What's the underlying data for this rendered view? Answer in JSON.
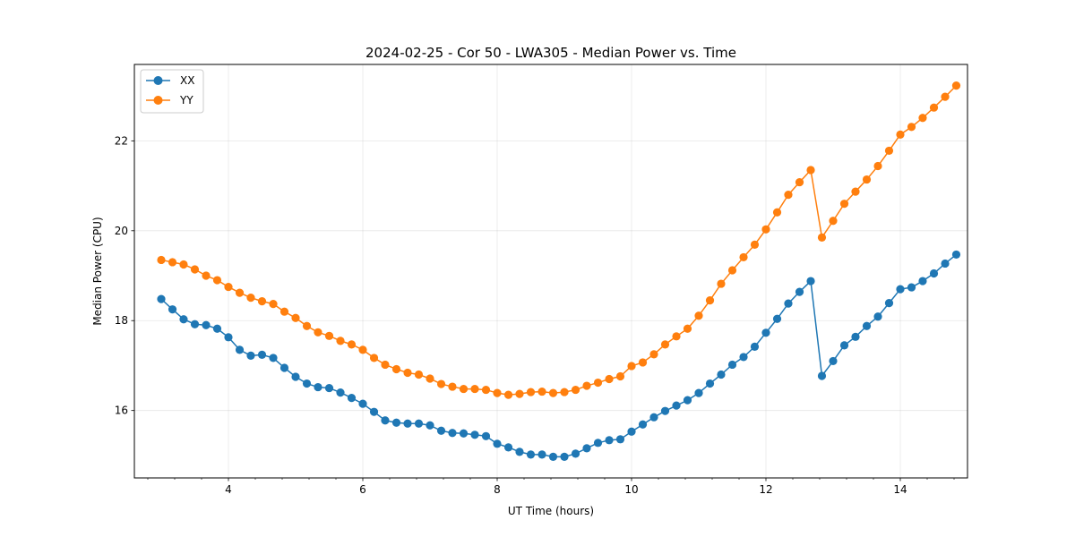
{
  "chart_data": {
    "type": "line",
    "title": "2024-02-25 - Cor 50 - LWA305 - Median Power vs. Time",
    "xlabel": "UT Time (hours)",
    "ylabel": "Median Power (CPU)",
    "xlim": [
      2.6,
      15.0
    ],
    "ylim": [
      14.5,
      23.7
    ],
    "x_ticks": [
      4,
      6,
      8,
      10,
      12,
      14
    ],
    "y_ticks": [
      16,
      18,
      20,
      22
    ],
    "x_minor_step": 0.4,
    "grid": true,
    "legend_position": "top-left",
    "x": [
      3.0,
      3.167,
      3.333,
      3.5,
      3.667,
      3.833,
      4.0,
      4.167,
      4.333,
      4.5,
      4.667,
      4.833,
      5.0,
      5.167,
      5.333,
      5.5,
      5.667,
      5.833,
      6.0,
      6.167,
      6.333,
      6.5,
      6.667,
      6.833,
      7.0,
      7.167,
      7.333,
      7.5,
      7.667,
      7.833,
      8.0,
      8.167,
      8.333,
      8.5,
      8.667,
      8.833,
      9.0,
      9.167,
      9.333,
      9.5,
      9.667,
      9.833,
      10.0,
      10.167,
      10.333,
      10.5,
      10.667,
      10.833,
      11.0,
      11.167,
      11.333,
      11.5,
      11.667,
      11.833,
      12.0,
      12.167,
      12.333,
      12.5,
      12.667,
      12.833,
      13.0,
      13.167,
      13.333,
      13.5,
      13.667,
      13.833,
      14.0,
      14.167,
      14.333,
      14.5,
      14.667,
      14.833
    ],
    "series": [
      {
        "name": "XX",
        "color": "#1f77b4",
        "values": [
          18.48,
          18.25,
          18.03,
          17.92,
          17.9,
          17.82,
          17.63,
          17.35,
          17.22,
          17.24,
          17.17,
          16.95,
          16.75,
          16.6,
          16.52,
          16.5,
          16.4,
          16.28,
          16.15,
          15.97,
          15.78,
          15.73,
          15.71,
          15.71,
          15.67,
          15.55,
          15.5,
          15.49,
          15.46,
          15.43,
          15.26,
          15.18,
          15.08,
          15.02,
          15.02,
          14.97,
          14.97,
          15.04,
          15.16,
          15.28,
          15.34,
          15.36,
          15.53,
          15.69,
          15.85,
          15.99,
          16.11,
          16.23,
          16.39,
          16.6,
          16.8,
          17.02,
          17.19,
          17.42,
          17.73,
          18.04,
          18.38,
          18.64,
          18.88,
          16.77,
          17.1,
          17.45,
          17.64,
          17.88,
          18.09,
          18.39,
          18.7,
          18.74,
          18.88,
          19.05,
          19.27,
          19.47
        ]
      },
      {
        "name": "YY",
        "color": "#ff7f0e",
        "values": [
          19.35,
          19.3,
          19.25,
          19.14,
          19.0,
          18.9,
          18.75,
          18.62,
          18.51,
          18.43,
          18.37,
          18.2,
          18.06,
          17.88,
          17.74,
          17.66,
          17.55,
          17.47,
          17.35,
          17.17,
          17.02,
          16.92,
          16.84,
          16.8,
          16.71,
          16.59,
          16.53,
          16.48,
          16.48,
          16.46,
          16.39,
          16.35,
          16.37,
          16.41,
          16.42,
          16.39,
          16.41,
          16.46,
          16.55,
          16.62,
          16.7,
          16.76,
          16.99,
          17.07,
          17.25,
          17.47,
          17.65,
          17.82,
          18.11,
          18.45,
          18.82,
          19.12,
          19.41,
          19.69,
          20.03,
          20.41,
          20.8,
          21.08,
          21.35,
          19.85,
          20.22,
          20.6,
          20.87,
          21.14,
          21.44,
          21.78,
          22.14,
          22.31,
          22.51,
          22.74,
          22.98,
          23.23
        ]
      }
    ]
  }
}
